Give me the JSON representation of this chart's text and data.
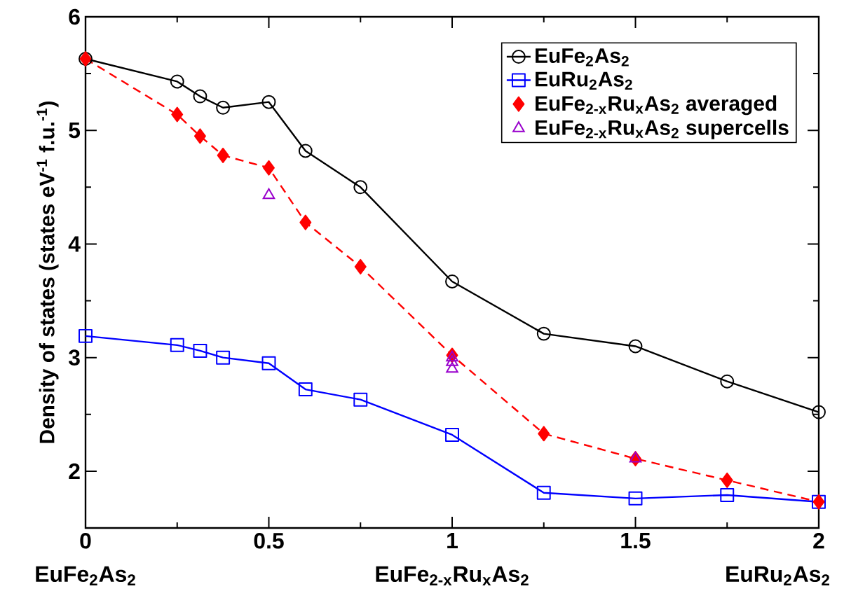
{
  "chart_data": {
    "type": "line",
    "xlabel": null,
    "ylabel": "Density of states (states eV$^{-1}$ f.u.$^{-1}$)",
    "xlim": [
      0,
      2
    ],
    "ylim": [
      1.5,
      6
    ],
    "xticks": [
      0,
      0.5,
      1,
      1.5,
      2
    ],
    "yticks": [
      2,
      3,
      4,
      5,
      6
    ],
    "legend": "top right",
    "grid": false,
    "series": [
      {
        "name": "EuFe$_{2}$As$_{2}$",
        "marker": "circle",
        "line_style": "solid",
        "color": "#000000",
        "x": [
          0,
          0.25,
          0.3125,
          0.375,
          0.5,
          0.6,
          0.75,
          1,
          1.25,
          1.5,
          1.75,
          2
        ],
        "values": [
          5.63,
          5.43,
          5.3,
          5.2,
          5.25,
          4.82,
          4.5,
          3.67,
          3.21,
          3.1,
          2.79,
          2.52
        ]
      },
      {
        "name": "EuRu$_{2}$As$_{2}$",
        "marker": "square",
        "line_style": "solid",
        "color": "#0000ff",
        "x": [
          0,
          0.25,
          0.3125,
          0.375,
          0.5,
          0.6,
          0.75,
          1,
          1.25,
          1.5,
          1.75,
          2
        ],
        "values": [
          3.19,
          3.11,
          3.06,
          3.0,
          2.95,
          2.72,
          2.63,
          2.32,
          1.81,
          1.76,
          1.79,
          1.73
        ]
      },
      {
        "name": "EuFe$_{2-x}$Ru$_{x}$As$_{2}$ averaged",
        "marker": "diamond",
        "line_style": "dashed",
        "color": "#ff0000",
        "x": [
          0,
          0.25,
          0.3125,
          0.375,
          0.5,
          0.6,
          0.75,
          1,
          1.25,
          1.5,
          1.75,
          2
        ],
        "values": [
          5.63,
          5.14,
          4.95,
          4.78,
          4.67,
          4.19,
          3.8,
          3.02,
          2.33,
          2.11,
          1.92,
          1.73
        ]
      },
      {
        "name": "EuFe$_{2-x}$Ru$_{x}$As$_{2}$ supercells",
        "type": "scatter",
        "marker": "triangle",
        "color": "#9900cc",
        "x": [
          0.5,
          1,
          1,
          1,
          1.5
        ],
        "values": [
          4.43,
          3.0,
          2.96,
          2.9,
          2.11
        ]
      }
    ],
    "annotations": [
      "EuFe$_{2}$As$_{2}$",
      "EuFe$_{2-x}$Ru$_{x}$As$_{2}$",
      "EuRu$_{2}$As$_{2}$"
    ]
  }
}
